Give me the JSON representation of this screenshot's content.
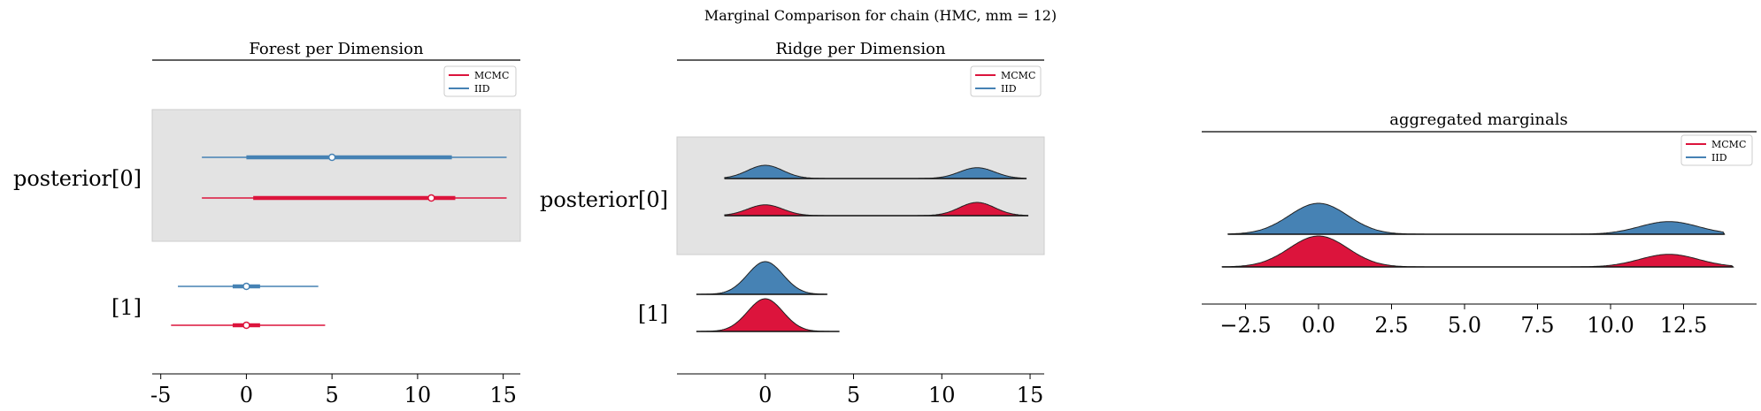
{
  "figure": {
    "suptitle": "Marginal Comparison for chain (HMC, mm = 12)"
  },
  "colors": {
    "mcmc": "#dc143c",
    "iid": "#4682b4",
    "shade": "#e3e3e3"
  },
  "legend": {
    "items": [
      "MCMC",
      "IID"
    ]
  },
  "chart_data": [
    {
      "type": "forest",
      "title": "Forest per Dimension",
      "xlim": [
        -5.5,
        16
      ],
      "xticks": [
        -5,
        0,
        5,
        10,
        15
      ],
      "row_labels": [
        "posterior[0]",
        "[1]"
      ],
      "shaded_row": "posterior[0]",
      "legend_position": "upper right",
      "series": [
        {
          "name": "IID",
          "rows": [
            {
              "variable": "posterior[0]",
              "hdi_low": -2.6,
              "hdi_high": 15.2,
              "iqr_low": 0.0,
              "iqr_high": 12.0,
              "point": 5.0
            },
            {
              "variable": "[1]",
              "hdi_low": -4.0,
              "hdi_high": 4.2,
              "iqr_low": -0.8,
              "iqr_high": 0.8,
              "point": 0.0
            }
          ]
        },
        {
          "name": "MCMC",
          "rows": [
            {
              "variable": "posterior[0]",
              "hdi_low": -2.6,
              "hdi_high": 15.2,
              "iqr_low": 0.4,
              "iqr_high": 12.2,
              "point": 10.8
            },
            {
              "variable": "[1]",
              "hdi_low": -4.4,
              "hdi_high": 4.6,
              "iqr_low": -0.8,
              "iqr_high": 0.8,
              "point": 0.0
            }
          ]
        }
      ]
    },
    {
      "type": "ridgeplot",
      "title": "Ridge per Dimension",
      "xlim": [
        -5,
        15.8
      ],
      "xticks": [
        0,
        5,
        10,
        15
      ],
      "row_labels": [
        "posterior[0]",
        "[1]"
      ],
      "shaded_row": "posterior[0]",
      "legend_position": "upper right",
      "series": [
        {
          "name": "IID",
          "rows": [
            {
              "variable": "posterior[0]",
              "range": [
                -2.3,
                14.8
              ],
              "components": [
                {
                  "mean": 0.0,
                  "sd": 1.0,
                  "weight": 0.55
                },
                {
                  "mean": 12.0,
                  "sd": 1.0,
                  "weight": 0.45
                }
              ]
            },
            {
              "variable": "[1]",
              "range": [
                -3.9,
                3.5
              ],
              "components": [
                {
                  "mean": 0.0,
                  "sd": 1.0,
                  "weight": 1.0
                }
              ]
            }
          ]
        },
        {
          "name": "MCMC",
          "rows": [
            {
              "variable": "posterior[0]",
              "range": [
                -2.3,
                14.9
              ],
              "components": [
                {
                  "mean": 0.0,
                  "sd": 1.0,
                  "weight": 0.45
                },
                {
                  "mean": 12.0,
                  "sd": 1.0,
                  "weight": 0.55
                }
              ]
            },
            {
              "variable": "[1]",
              "range": [
                -3.9,
                4.2
              ],
              "components": [
                {
                  "mean": 0.0,
                  "sd": 1.0,
                  "weight": 1.0
                }
              ]
            }
          ]
        }
      ]
    },
    {
      "type": "ridgeplot",
      "title": "aggregated marginals",
      "xlim": [
        -4.0,
        15.0
      ],
      "xticks": [
        -2.5,
        0.0,
        2.5,
        5.0,
        7.5,
        10.0,
        12.5
      ],
      "xticklabels": [
        "−2.5",
        "0.0",
        "2.5",
        "5.0",
        "7.5",
        "10.0",
        "12.5"
      ],
      "legend_position": "upper right",
      "series": [
        {
          "name": "IID",
          "range": [
            -3.1,
            13.9
          ],
          "components": [
            {
              "mean": 0.0,
              "sd": 1.0,
              "weight": 0.71
            },
            {
              "mean": 12.0,
              "sd": 1.0,
              "weight": 0.29
            }
          ]
        },
        {
          "name": "MCMC",
          "range": [
            -3.3,
            14.2
          ],
          "components": [
            {
              "mean": 0.0,
              "sd": 1.0,
              "weight": 0.71
            },
            {
              "mean": 12.0,
              "sd": 1.0,
              "weight": 0.29
            }
          ]
        }
      ]
    }
  ]
}
